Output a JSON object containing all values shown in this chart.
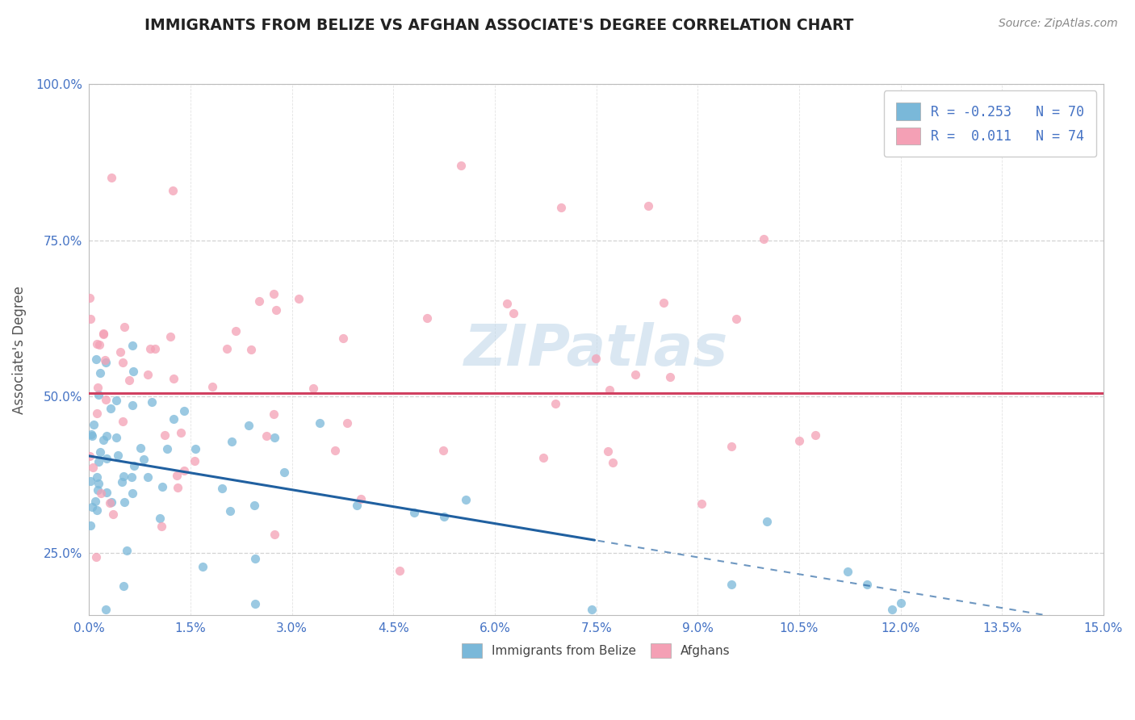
{
  "title": "IMMIGRANTS FROM BELIZE VS AFGHAN ASSOCIATE'S DEGREE CORRELATION CHART",
  "source_text": "Source: ZipAtlas.com",
  "ylabel": "Associate's Degree",
  "legend_labels": [
    "Immigrants from Belize",
    "Afghans"
  ],
  "legend_R": [
    -0.253,
    0.011
  ],
  "legend_N": [
    70,
    74
  ],
  "xlim": [
    0.0,
    0.15
  ],
  "ylim": [
    0.15,
    1.0
  ],
  "xticks": [
    0.0,
    0.015,
    0.03,
    0.045,
    0.06,
    0.075,
    0.09,
    0.105,
    0.12,
    0.135,
    0.15
  ],
  "yticks": [
    0.25,
    0.5,
    0.75,
    1.0
  ],
  "blue_color": "#7ab8d9",
  "pink_color": "#f4a0b5",
  "blue_line_color": "#2060a0",
  "pink_line_color": "#d04060",
  "background_color": "#ffffff",
  "grid_color": "#c8c8c8",
  "watermark_text": "ZIPatlas",
  "blue_line_x0": 0.0,
  "blue_line_y0": 0.405,
  "blue_line_x1": 0.15,
  "blue_line_y1": 0.135,
  "blue_line_solid_end": 0.075,
  "pink_line_y": 0.505,
  "title_color": "#222222",
  "source_color": "#888888"
}
